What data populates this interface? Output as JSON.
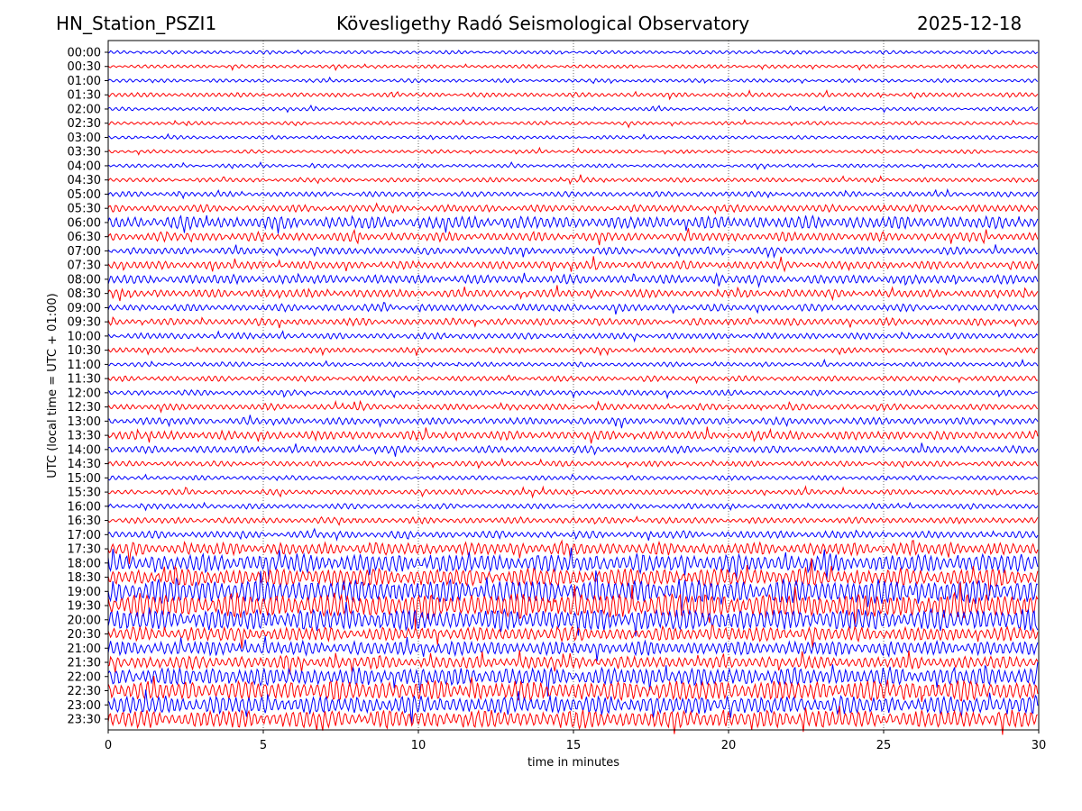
{
  "header": {
    "station": "HN_Station_PSZI1",
    "observatory": "Kövesligethy Radó Seismological Observatory",
    "date": "2025-12-18"
  },
  "chart_data": {
    "type": "line",
    "title": "Kövesligethy Radó Seismological Observatory",
    "xlabel": "time in minutes",
    "ylabel": "UTC (local time = UTC + 01:00)",
    "xlim": [
      0,
      30
    ],
    "xticks": [
      "0",
      "5",
      "10",
      "15",
      "20",
      "25",
      "30"
    ],
    "grid": "vertical dotted lines at every 5 minutes",
    "colors": [
      "#0000ff",
      "#ff0000"
    ],
    "rows": [
      "00:00",
      "00:30",
      "01:00",
      "01:30",
      "02:00",
      "02:30",
      "03:00",
      "03:30",
      "04:00",
      "04:30",
      "05:00",
      "05:30",
      "06:00",
      "06:30",
      "07:00",
      "07:30",
      "08:00",
      "08:30",
      "09:00",
      "09:30",
      "10:00",
      "10:30",
      "11:00",
      "11:30",
      "12:00",
      "12:30",
      "13:00",
      "13:30",
      "14:00",
      "14:30",
      "15:00",
      "15:30",
      "16:00",
      "16:30",
      "17:00",
      "17:30",
      "18:00",
      "18:30",
      "19:00",
      "19:30",
      "20:00",
      "20:30",
      "21:00",
      "21:30",
      "22:00",
      "22:30",
      "23:00",
      "23:30"
    ],
    "relative_amplitude": [
      2,
      2,
      2,
      2.5,
      2,
      2,
      2,
      2,
      2,
      2.5,
      3,
      4,
      7,
      5,
      4,
      4.5,
      5,
      4.5,
      4,
      4,
      3.5,
      3,
      2.5,
      3,
      3,
      3.5,
      4,
      5,
      4,
      3,
      2.5,
      3,
      3,
      3.5,
      4,
      7,
      10,
      10,
      13,
      14,
      12,
      8,
      8,
      7,
      10,
      11,
      10,
      10
    ]
  }
}
